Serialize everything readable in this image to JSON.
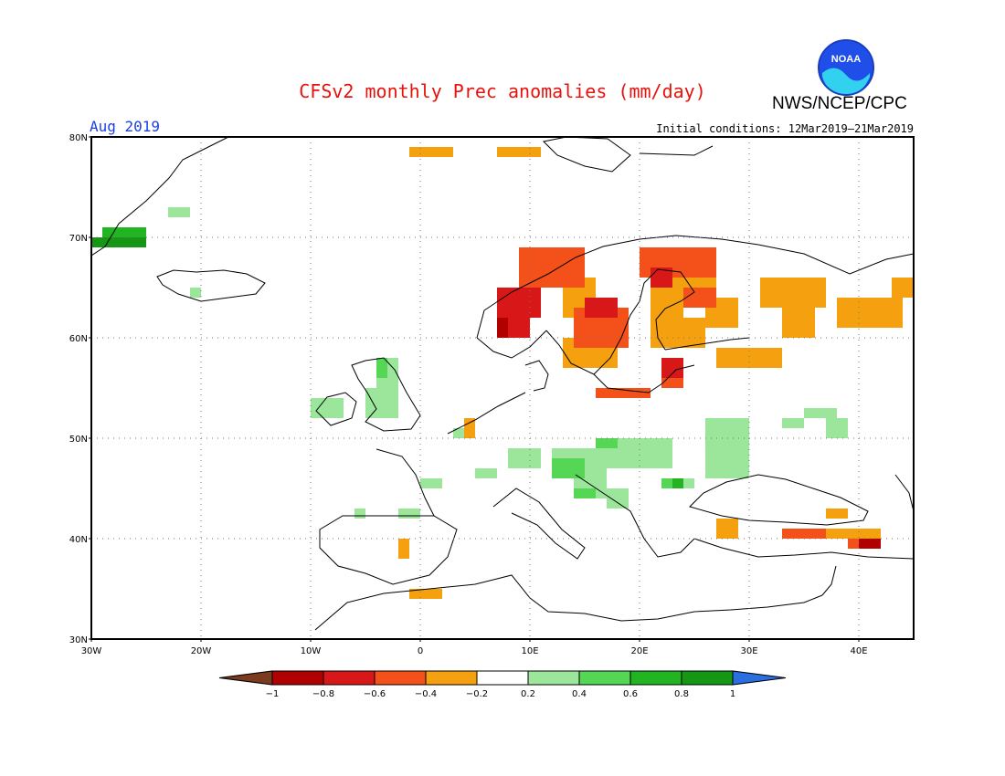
{
  "header": {
    "title": "CFSv2 monthly Prec anomalies (mm/day)",
    "org": "NWS/NCEP/CPC",
    "logo_text": "NOAA",
    "month": "Aug 2019",
    "initial_conditions": "Initial conditions: 12Mar2019–21Mar2019"
  },
  "axes": {
    "lat_labels": [
      "80N",
      "70N",
      "60N",
      "50N",
      "40N",
      "30N"
    ],
    "lon_labels": [
      "30W",
      "20W",
      "10W",
      "0",
      "10E",
      "20E",
      "30E",
      "40E"
    ]
  },
  "colorbar": {
    "ticks": [
      "−1",
      "−0.8",
      "−0.6",
      "−0.4",
      "−0.2",
      "0.2",
      "0.4",
      "0.6",
      "0.8",
      "1"
    ],
    "colors": [
      "#7a3b1e",
      "#b10000",
      "#d81818",
      "#f4501a",
      "#f5a00e",
      "#ffffff",
      "#9be69b",
      "#55d655",
      "#22b422",
      "#159615",
      "#2a6fe0"
    ]
  },
  "map_data": {
    "region": "Europe",
    "lon_range": [
      -30,
      45
    ],
    "lat_range": [
      30,
      80
    ],
    "field": "precipitation anomaly (mm/day)",
    "anomaly_patches": [
      {
        "color": "#f5a00e",
        "cells": [
          [
            -1,
            78,
            4,
            1
          ],
          [
            7,
            78,
            4,
            1
          ],
          [
            13,
            62,
            3,
            4
          ],
          [
            13,
            57,
            5,
            3
          ],
          [
            21,
            65,
            6,
            2
          ],
          [
            21,
            62,
            3,
            3
          ],
          [
            26,
            61,
            3,
            3
          ],
          [
            27,
            57,
            6,
            2
          ],
          [
            31,
            63,
            6,
            3
          ],
          [
            33,
            60,
            3,
            3
          ],
          [
            38,
            61,
            6,
            3
          ],
          [
            43,
            64,
            3,
            2
          ],
          [
            21,
            59,
            5,
            3
          ],
          [
            15,
            58,
            3,
            2
          ],
          [
            4,
            50,
            1,
            2
          ],
          [
            10,
            47,
            1,
            1
          ],
          [
            37,
            42,
            2,
            1
          ],
          [
            27,
            40,
            2,
            2
          ],
          [
            37,
            40,
            5,
            1
          ],
          [
            -2,
            38,
            1,
            2
          ],
          [
            -1,
            34,
            3,
            1
          ]
        ]
      },
      {
        "color": "#f4501a",
        "cells": [
          [
            9,
            65,
            6,
            4
          ],
          [
            12,
            67,
            3,
            2
          ],
          [
            20,
            66,
            7,
            3
          ],
          [
            14,
            59,
            5,
            4
          ],
          [
            24,
            63,
            3,
            2
          ],
          [
            16,
            54,
            5,
            1
          ],
          [
            22,
            55,
            2,
            2
          ],
          [
            33,
            40,
            4,
            1
          ],
          [
            39,
            39,
            3,
            1
          ]
        ]
      },
      {
        "color": "#d81818",
        "cells": [
          [
            7,
            62,
            4,
            3
          ],
          [
            8,
            60,
            2,
            2
          ],
          [
            15,
            62,
            3,
            2
          ],
          [
            21,
            65,
            2,
            2
          ],
          [
            22,
            56,
            2,
            2
          ]
        ]
      },
      {
        "color": "#b10000",
        "cells": [
          [
            7,
            60,
            1,
            2
          ],
          [
            40,
            39,
            2,
            1
          ]
        ]
      },
      {
        "color": "#9be69b",
        "cells": [
          [
            -4,
            55,
            2,
            3
          ],
          [
            -5,
            52,
            3,
            3
          ],
          [
            -10,
            52,
            3,
            2
          ],
          [
            -23,
            72,
            2,
            1
          ],
          [
            -21,
            64,
            1,
            1
          ],
          [
            3,
            50,
            1,
            1
          ],
          [
            12,
            46,
            5,
            3
          ],
          [
            8,
            47,
            3,
            2
          ],
          [
            17,
            47,
            6,
            3
          ],
          [
            26,
            46,
            4,
            6
          ],
          [
            33,
            51,
            2,
            1
          ],
          [
            35,
            52,
            3,
            1
          ],
          [
            37,
            50,
            2,
            2
          ],
          [
            22,
            45,
            3,
            1
          ],
          [
            14,
            44,
            3,
            3
          ],
          [
            5,
            46,
            2,
            1
          ],
          [
            0,
            45,
            2,
            1
          ],
          [
            -2,
            42,
            2,
            1
          ],
          [
            -6,
            42,
            1,
            1
          ],
          [
            17,
            43,
            2,
            2
          ]
        ]
      },
      {
        "color": "#55d655",
        "cells": [
          [
            -4,
            56,
            1,
            2
          ],
          [
            12,
            46,
            3,
            2
          ],
          [
            22,
            45,
            2,
            1
          ],
          [
            14,
            44,
            2,
            1
          ],
          [
            16,
            49,
            2,
            1
          ]
        ]
      },
      {
        "color": "#22b422",
        "cells": [
          [
            -29,
            69,
            4,
            2
          ],
          [
            23,
            45,
            1,
            1
          ]
        ]
      },
      {
        "color": "#159615",
        "cells": [
          [
            -30,
            69,
            5,
            1
          ]
        ]
      }
    ]
  }
}
